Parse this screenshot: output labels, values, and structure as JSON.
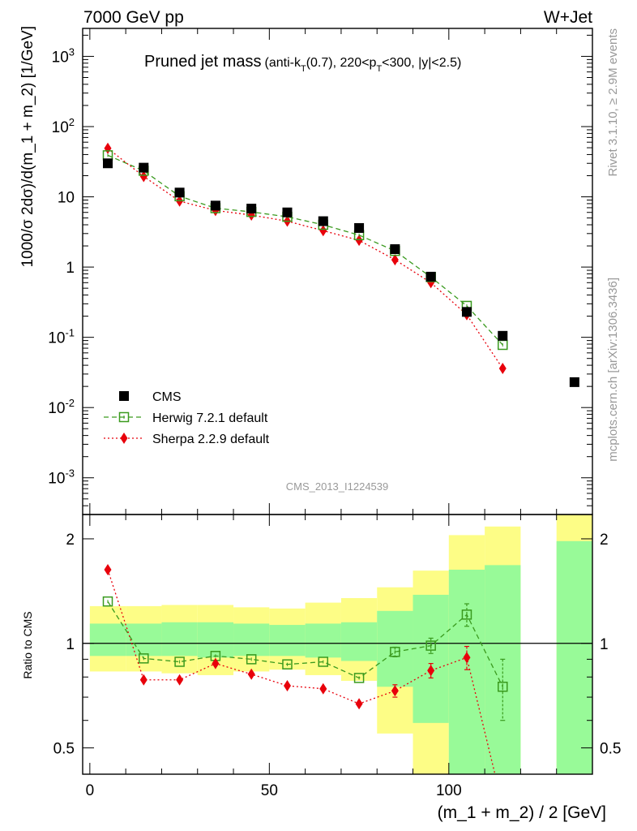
{
  "header": {
    "left": "7000 GeV pp",
    "right": "W+Jet"
  },
  "side_labels": {
    "rivet": "Rivet 3.1.10, ≥ 2.9M events",
    "mcplots": "mcplots.cern.ch [arXiv:1306.3436]"
  },
  "chart_data": [
    {
      "type": "scatter",
      "panel": "main",
      "title_main": "Pruned jet mass",
      "title_detail": "(anti-k_T(0.7), 220<p_T<300, |y|<2.5)",
      "analysis_id": "CMS_2013_I1224539",
      "xlabel": "(m_1 + m_2) / 2 [GeV]",
      "ylabel": "1000/σ 2dσ)/d(m_1 + m_2) [1/GeV]",
      "y_scale": "log",
      "xlim": [
        -2,
        140
      ],
      "ylim": [
        0.0003,
        2500
      ],
      "x_ticks": [
        0,
        50,
        100
      ],
      "y_ticks": [
        {
          "value": 0.001,
          "base": "10",
          "exp": "-3"
        },
        {
          "value": 0.01,
          "base": "10",
          "exp": "-2"
        },
        {
          "value": 0.1,
          "base": "10",
          "exp": "-1"
        },
        {
          "value": 1,
          "base": "1",
          "exp": ""
        },
        {
          "value": 10,
          "base": "10",
          "exp": ""
        },
        {
          "value": 100,
          "base": "10",
          "exp": "2"
        },
        {
          "value": 1000,
          "base": "10",
          "exp": "3"
        }
      ],
      "legend_position": "lower-left",
      "series": [
        {
          "name": "CMS",
          "color": "#000000",
          "marker": "filled-square",
          "line": "none",
          "x": [
            5,
            15,
            25,
            35,
            45,
            55,
            65,
            75,
            85,
            95,
            105,
            115,
            135
          ],
          "y": [
            30,
            26,
            11.5,
            7.5,
            6.8,
            6.0,
            4.5,
            3.6,
            1.8,
            0.73,
            0.23,
            0.105,
            0.023
          ]
        },
        {
          "name": "Herwig 7.2.1 default",
          "color": "#3a9a1e",
          "marker": "open-square",
          "line": "dashed",
          "x": [
            5,
            15,
            25,
            35,
            45,
            55,
            65,
            75,
            85,
            95,
            105,
            115
          ],
          "y": [
            39,
            23.5,
            10.2,
            6.9,
            6.1,
            5.2,
            4.0,
            2.85,
            1.7,
            0.72,
            0.28,
            0.078
          ]
        },
        {
          "name": "Sherpa 2.2.9 default",
          "color": "#e8000b",
          "marker": "filled-diamond",
          "line": "dotted",
          "x": [
            5,
            15,
            25,
            35,
            45,
            55,
            65,
            75,
            85,
            95,
            105,
            115
          ],
          "y": [
            49,
            19.5,
            8.7,
            6.4,
            5.5,
            4.5,
            3.3,
            2.4,
            1.27,
            0.6,
            0.21,
            0.036
          ]
        }
      ]
    },
    {
      "type": "area",
      "panel": "ratio",
      "ylabel": "Ratio to CMS",
      "xlabel": "(m_1 + m_2) / 2 [GeV]",
      "y_scale": "log",
      "xlim": [
        -2,
        140
      ],
      "ylim": [
        0.42,
        2.35
      ],
      "y_ticks": [
        {
          "value": 0.5,
          "label": "0.5"
        },
        {
          "value": 1,
          "label": "1"
        },
        {
          "value": 2,
          "label": "2"
        }
      ],
      "band_colors": {
        "stat_syst": "#fdfd86",
        "stat": "#98fa98"
      },
      "bands": [
        {
          "x0": 0,
          "x1": 10,
          "outer": [
            0.83,
            1.28
          ],
          "inner": [
            0.92,
            1.14
          ]
        },
        {
          "x0": 10,
          "x1": 20,
          "outer": [
            0.83,
            1.28
          ],
          "inner": [
            0.92,
            1.14
          ]
        },
        {
          "x0": 20,
          "x1": 30,
          "outer": [
            0.82,
            1.29
          ],
          "inner": [
            0.92,
            1.15
          ]
        },
        {
          "x0": 30,
          "x1": 40,
          "outer": [
            0.81,
            1.29
          ],
          "inner": [
            0.91,
            1.15
          ]
        },
        {
          "x0": 40,
          "x1": 50,
          "outer": [
            0.83,
            1.27
          ],
          "inner": [
            0.92,
            1.14
          ]
        },
        {
          "x0": 50,
          "x1": 60,
          "outer": [
            0.84,
            1.26
          ],
          "inner": [
            0.92,
            1.13
          ]
        },
        {
          "x0": 60,
          "x1": 70,
          "outer": [
            0.81,
            1.31
          ],
          "inner": [
            0.91,
            1.14
          ]
        },
        {
          "x0": 70,
          "x1": 80,
          "outer": [
            0.78,
            1.35
          ],
          "inner": [
            0.89,
            1.15
          ]
        },
        {
          "x0": 80,
          "x1": 90,
          "outer": [
            0.55,
            1.45
          ],
          "inner": [
            0.75,
            1.24
          ]
        },
        {
          "x0": 90,
          "x1": 100,
          "outer": [
            0.42,
            1.62
          ],
          "inner": [
            0.59,
            1.38
          ]
        },
        {
          "x0": 100,
          "x1": 110,
          "outer": [
            0.42,
            2.05
          ],
          "inner": [
            0.42,
            1.63
          ]
        },
        {
          "x0": 110,
          "x1": 120,
          "outer": [
            0.42,
            2.17
          ],
          "inner": [
            0.42,
            1.68
          ]
        },
        {
          "x0": 130,
          "x1": 140,
          "outer": [
            0.42,
            2.35
          ],
          "inner": [
            0.42,
            1.97
          ]
        }
      ],
      "series": [
        {
          "name": "Herwig 7.2.1 default",
          "color": "#3a9a1e",
          "marker": "open-square",
          "line": "dashed",
          "x": [
            5,
            15,
            25,
            35,
            45,
            55,
            65,
            75,
            85,
            95,
            105,
            115
          ],
          "y": [
            1.32,
            0.905,
            0.885,
            0.92,
            0.9,
            0.87,
            0.885,
            0.795,
            0.945,
            0.985,
            1.21,
            0.75
          ],
          "err": [
            0,
            0,
            0,
            0,
            0,
            0,
            0,
            0,
            0.03,
            0.05,
            0.09,
            0.15
          ]
        },
        {
          "name": "Sherpa 2.2.9 default",
          "color": "#e8000b",
          "marker": "filled-diamond",
          "line": "dotted",
          "x": [
            5,
            15,
            25,
            35,
            45,
            55,
            65,
            75,
            85,
            95,
            105,
            115
          ],
          "y": [
            1.63,
            0.785,
            0.785,
            0.875,
            0.815,
            0.755,
            0.74,
            0.67,
            0.73,
            0.835,
            0.91,
            0.34
          ],
          "err": [
            0,
            0,
            0,
            0,
            0,
            0,
            0,
            0,
            0.03,
            0.04,
            0.07,
            0
          ]
        }
      ]
    }
  ]
}
